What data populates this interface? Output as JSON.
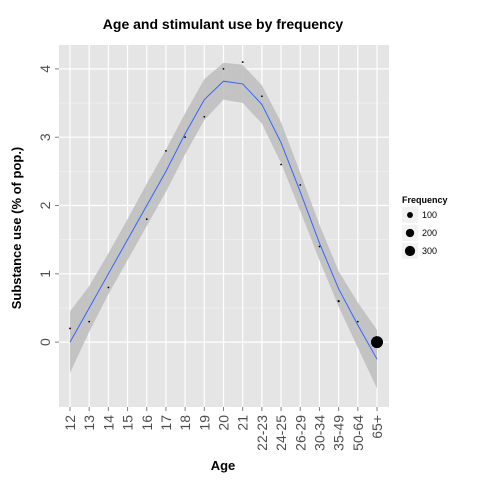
{
  "chart_data": {
    "type": "scatter",
    "title": "Age and stimulant use by frequency",
    "xlabel": "Age",
    "ylabel": "Substance use (% of pop.)",
    "categories": [
      "12",
      "13",
      "14",
      "15",
      "16",
      "17",
      "18",
      "19",
      "20",
      "21",
      "22-23",
      "24-25",
      "26-29",
      "30-34",
      "35-49",
      "50-64",
      "65+"
    ],
    "y_ticks": [
      0,
      1,
      2,
      3,
      4
    ],
    "ylim": [
      -0.95,
      4.35
    ],
    "grid": true,
    "points": [
      {
        "x": "12",
        "y": 0.2,
        "frequency": 2
      },
      {
        "x": "13",
        "y": 0.3,
        "frequency": 2
      },
      {
        "x": "14",
        "y": 0.8,
        "frequency": 2
      },
      {
        "x": "16",
        "y": 1.8,
        "frequency": 2
      },
      {
        "x": "17",
        "y": 2.8,
        "frequency": 2
      },
      {
        "x": "18",
        "y": 3.0,
        "frequency": 2
      },
      {
        "x": "19",
        "y": 3.3,
        "frequency": 2
      },
      {
        "x": "20",
        "y": 4.0,
        "frequency": 2
      },
      {
        "x": "21",
        "y": 4.1,
        "frequency": 2
      },
      {
        "x": "22-23",
        "y": 3.6,
        "frequency": 2
      },
      {
        "x": "24-25",
        "y": 2.6,
        "frequency": 2
      },
      {
        "x": "26-29",
        "y": 2.3,
        "frequency": 2
      },
      {
        "x": "30-34",
        "y": 1.4,
        "frequency": 2
      },
      {
        "x": "35-49",
        "y": 0.6,
        "frequency": 10
      },
      {
        "x": "50-64",
        "y": 0.3,
        "frequency": 2
      },
      {
        "x": "65+",
        "y": 0.0,
        "frequency": 300
      }
    ],
    "smooth_fit": {
      "method": "loess",
      "y": [
        0.0,
        0.5,
        1.0,
        1.5,
        2.0,
        2.5,
        3.05,
        3.55,
        3.82,
        3.78,
        3.48,
        2.92,
        2.2,
        1.45,
        0.78,
        0.25,
        -0.25
      ],
      "ci_lower": [
        -0.45,
        0.15,
        0.7,
        1.2,
        1.7,
        2.2,
        2.75,
        3.25,
        3.55,
        3.5,
        3.2,
        2.62,
        1.92,
        1.2,
        0.52,
        -0.08,
        -0.68
      ],
      "ci_upper": [
        0.45,
        0.82,
        1.3,
        1.8,
        2.32,
        2.82,
        3.35,
        3.85,
        4.09,
        4.06,
        3.76,
        3.22,
        2.48,
        1.72,
        1.04,
        0.58,
        0.18
      ],
      "color": "#3366ff",
      "band_color": "#bdbdbd"
    },
    "panel_background": "#e5e5e5",
    "legend": {
      "title": "Frequency",
      "placement": "right",
      "entries": [
        {
          "label": "100",
          "frequency": 100
        },
        {
          "label": "200",
          "frequency": 200
        },
        {
          "label": "300",
          "frequency": 300
        }
      ]
    }
  }
}
